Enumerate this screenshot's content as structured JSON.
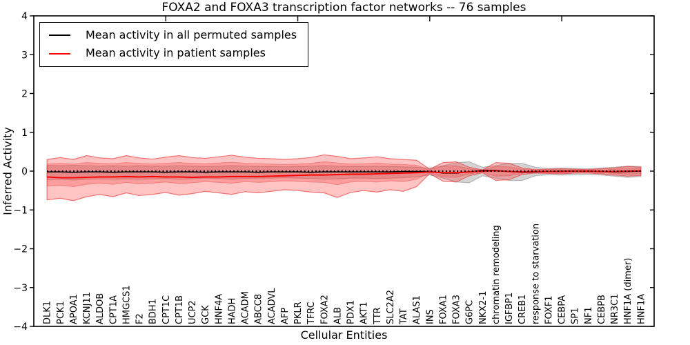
{
  "figure": {
    "title": "FOXA2 and FOXA3 transcription factor networks -- 76 samples",
    "xlabel": "Cellular Entities",
    "ylabel": "Inferred Activity"
  },
  "legend": {
    "entries": [
      {
        "label": "Mean activity in all permuted samples",
        "color": "#000000"
      },
      {
        "label": "Mean activity in patient samples",
        "color": "#ff0000"
      }
    ]
  },
  "axes": {
    "ylim": [
      -4,
      4
    ],
    "yticks": [
      4,
      3,
      2,
      1,
      0,
      -1,
      -2,
      -3,
      -4
    ],
    "xticks_top": [
      10,
      20,
      30,
      40
    ],
    "grid": false
  },
  "colors": {
    "permuted_line": "#000000",
    "patient_line": "#ff0000",
    "patient_band_fill": "rgba(252,60,60,0.30)",
    "patient_band_edge": "rgba(235,55,55,0.65)",
    "patient_inner_fill": "rgba(250,70,70,0.30)",
    "patient_inner_edge": "rgba(235,80,80,0.45)",
    "permuted_band_fill": "rgba(120,120,120,0.32)",
    "permuted_band_edge": "rgba(120,120,120,0.45)",
    "zero_line": "#000000"
  },
  "chart_data": {
    "type": "line",
    "title": "FOXA2 and FOXA3 transcription factor networks -- 76 samples",
    "xlabel": "Cellular Entities",
    "ylabel": "Inferred Activity",
    "ylim": [
      -4,
      4
    ],
    "legend_position": "upper left",
    "zero_line": 0,
    "categories": [
      "DLK1",
      "PCK1",
      "APOA1",
      "KCNJ11",
      "ALDOB",
      "CPT1A",
      "HMGCS1",
      "F2",
      "BDH1",
      "CPT1C",
      "CPT1B",
      "UCP2",
      "GCK",
      "HNF4A",
      "HADH",
      "ACADM",
      "ABCC8",
      "ACADVL",
      "AFP",
      "PKLR",
      "TFRC",
      "FOXA2",
      "ALB",
      "PDX1",
      "AKT1",
      "TTR",
      "SLC2A2",
      "TAT",
      "ALAS1",
      "INS",
      "FOXA1",
      "FOXA3",
      "G6PC",
      "NKX2-1",
      "chromatin remodeling",
      "IGFBP1",
      "CREB1",
      "response to starvation",
      "FOXF1",
      "CEBPA",
      "SP1",
      "NF1",
      "CEBPB",
      "NR3C1",
      "HNF1A (dimer)",
      "HNF1A"
    ],
    "series": [
      {
        "name": "Mean activity in all permuted samples",
        "color": "#000000",
        "width": 1.6,
        "values": [
          -0.02,
          -0.02,
          -0.03,
          -0.02,
          -0.02,
          -0.03,
          -0.02,
          -0.02,
          -0.02,
          -0.03,
          -0.02,
          -0.02,
          -0.03,
          -0.02,
          -0.02,
          -0.02,
          -0.03,
          -0.02,
          -0.02,
          -0.02,
          -0.03,
          -0.02,
          -0.02,
          -0.02,
          -0.02,
          -0.02,
          -0.02,
          -0.01,
          -0.01,
          -0.01,
          -0.05,
          -0.05,
          -0.02,
          0.02,
          0.02,
          -0.01,
          -0.03,
          -0.02,
          -0.01,
          0,
          0,
          0,
          -0.01,
          -0.02,
          -0.01,
          0
        ]
      },
      {
        "name": "Mean activity in patient samples",
        "color": "#ff0000",
        "width": 1.9,
        "values": [
          -0.15,
          -0.17,
          -0.17,
          -0.16,
          -0.15,
          -0.15,
          -0.14,
          -0.15,
          -0.14,
          -0.15,
          -0.15,
          -0.16,
          -0.15,
          -0.15,
          -0.14,
          -0.14,
          -0.14,
          -0.13,
          -0.12,
          -0.11,
          -0.1,
          -0.1,
          -0.09,
          -0.08,
          -0.08,
          -0.07,
          -0.06,
          -0.05,
          -0.04,
          -0.02,
          -0.04,
          -0.04,
          -0.02,
          0,
          0.01,
          -0.01,
          -0.02,
          -0.01,
          -0.01,
          -0.01,
          0,
          0,
          -0.01,
          -0.01,
          0,
          0.01
        ]
      }
    ],
    "bands": [
      {
        "name": "permuted-band",
        "fill": "rgba(120,120,120,0.32)",
        "edge": "rgba(120,120,120,0.45)",
        "upper": [
          0.15,
          0.14,
          0.15,
          0.14,
          0.13,
          0.14,
          0.13,
          0.14,
          0.13,
          0.13,
          0.14,
          0.13,
          0.12,
          0.13,
          0.14,
          0.13,
          0.12,
          0.12,
          0.11,
          0.12,
          0.13,
          0.14,
          0.13,
          0.12,
          0.12,
          0.13,
          0.12,
          0.11,
          0.1,
          0.08,
          0.14,
          0.22,
          0.24,
          0.1,
          0.14,
          0.2,
          0.2,
          0.1,
          0.07,
          0.08,
          0.07,
          0.06,
          0.08,
          0.1,
          0.13,
          0.12
        ],
        "lower": [
          -0.22,
          -0.21,
          -0.23,
          -0.21,
          -0.2,
          -0.21,
          -0.2,
          -0.21,
          -0.2,
          -0.19,
          -0.21,
          -0.2,
          -0.18,
          -0.19,
          -0.21,
          -0.19,
          -0.18,
          -0.18,
          -0.17,
          -0.18,
          -0.19,
          -0.21,
          -0.2,
          -0.18,
          -0.18,
          -0.19,
          -0.18,
          -0.17,
          -0.15,
          -0.1,
          -0.18,
          -0.28,
          -0.3,
          -0.12,
          -0.18,
          -0.24,
          -0.24,
          -0.12,
          -0.09,
          -0.1,
          -0.09,
          -0.08,
          -0.1,
          -0.13,
          -0.16,
          -0.14
        ]
      },
      {
        "name": "patient-band-outer",
        "fill": "rgba(252,60,60,0.30)",
        "edge": "rgba(235,55,55,0.65)",
        "upper": [
          0.3,
          0.35,
          0.3,
          0.4,
          0.34,
          0.32,
          0.4,
          0.34,
          0.31,
          0.36,
          0.4,
          0.35,
          0.33,
          0.37,
          0.41,
          0.36,
          0.33,
          0.32,
          0.3,
          0.32,
          0.35,
          0.42,
          0.38,
          0.32,
          0.34,
          0.37,
          0.32,
          0.3,
          0.28,
          0.05,
          0.22,
          0.24,
          0.1,
          0.03,
          0.22,
          0.2,
          0.08,
          0.04,
          0.05,
          0.06,
          0.05,
          0.04,
          0.06,
          0.08,
          0.12,
          0.1
        ],
        "lower": [
          -0.74,
          -0.7,
          -0.76,
          -0.66,
          -0.6,
          -0.66,
          -0.56,
          -0.63,
          -0.6,
          -0.55,
          -0.62,
          -0.58,
          -0.52,
          -0.56,
          -0.6,
          -0.53,
          -0.56,
          -0.52,
          -0.48,
          -0.5,
          -0.54,
          -0.56,
          -0.68,
          -0.55,
          -0.5,
          -0.54,
          -0.48,
          -0.52,
          -0.4,
          -0.06,
          -0.26,
          -0.28,
          -0.12,
          -0.04,
          -0.24,
          -0.22,
          -0.09,
          -0.05,
          -0.06,
          -0.07,
          -0.05,
          -0.05,
          -0.07,
          -0.1,
          -0.13,
          -0.11
        ]
      },
      {
        "name": "patient-band-inner",
        "fill": "rgba(250,70,70,0.30)",
        "edge": "rgba(235,80,80,0.45)",
        "upper": [
          0.18,
          0.2,
          0.18,
          0.22,
          0.2,
          0.19,
          0.22,
          0.2,
          0.18,
          0.2,
          0.22,
          0.2,
          0.19,
          0.21,
          0.23,
          0.2,
          0.19,
          0.18,
          0.17,
          0.18,
          0.2,
          0.24,
          0.21,
          0.18,
          0.19,
          0.21,
          0.18,
          0.17,
          0.15,
          0.03,
          0.13,
          0.14,
          0.06,
          0.02,
          0.12,
          0.11,
          0.05,
          0.02,
          0.03,
          0.03,
          0.03,
          0.02,
          0.03,
          0.05,
          0.07,
          0.06
        ],
        "lower": [
          -0.38,
          -0.36,
          -0.4,
          -0.34,
          -0.31,
          -0.34,
          -0.29,
          -0.33,
          -0.31,
          -0.28,
          -0.32,
          -0.3,
          -0.27,
          -0.29,
          -0.31,
          -0.27,
          -0.29,
          -0.27,
          -0.25,
          -0.26,
          -0.28,
          -0.29,
          -0.35,
          -0.28,
          -0.26,
          -0.28,
          -0.25,
          -0.27,
          -0.21,
          -0.04,
          -0.15,
          -0.16,
          -0.07,
          -0.03,
          -0.13,
          -0.12,
          -0.06,
          -0.03,
          -0.04,
          -0.04,
          -0.03,
          -0.03,
          -0.04,
          -0.06,
          -0.08,
          -0.07
        ]
      }
    ]
  }
}
